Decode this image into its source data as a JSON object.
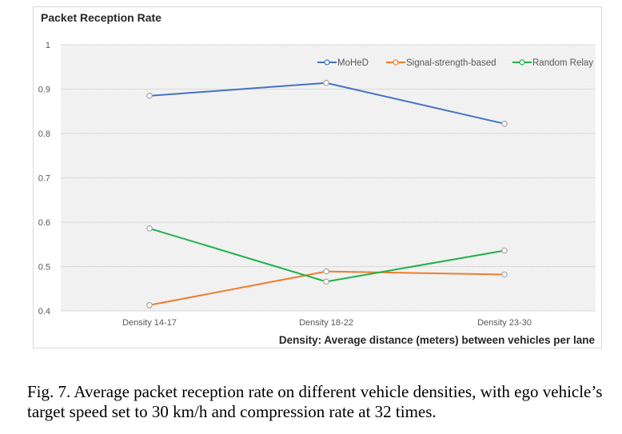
{
  "chart_data": {
    "type": "line",
    "title": "Packet Reception Rate",
    "xlabel": "Density: Average distance (meters) between vehicles per lane",
    "ylabel": "",
    "categories": [
      "Density 14-17",
      "Density 18-22",
      "Density 23-30"
    ],
    "ylim": [
      0.4,
      1.0
    ],
    "yticks": [
      "0.4",
      "0.5",
      "0.6",
      "0.7",
      "0.8",
      "0.9",
      "1"
    ],
    "yticks_values": [
      0.4,
      0.5,
      0.6,
      0.7,
      0.8,
      0.9,
      1.0
    ],
    "grid": true,
    "legend_position": "top-right",
    "series": [
      {
        "name": "MoHeD",
        "color": "#4472c4",
        "values": [
          0.885,
          0.914,
          0.822
        ]
      },
      {
        "name": "Signal-strength-based",
        "color": "#ed7d31",
        "values": [
          0.413,
          0.489,
          0.482
        ]
      },
      {
        "name": "Random Relay",
        "color": "#21b04b",
        "values": [
          0.586,
          0.466,
          0.536
        ]
      }
    ],
    "marker_stroke": "#a6a6a6",
    "marker_fill": "#ffffff"
  },
  "caption": {
    "text": "Fig. 7.  Average packet reception rate on different vehicle densities, with ego vehicle’s target speed set to 30 km/h and compression rate at 32 times."
  }
}
